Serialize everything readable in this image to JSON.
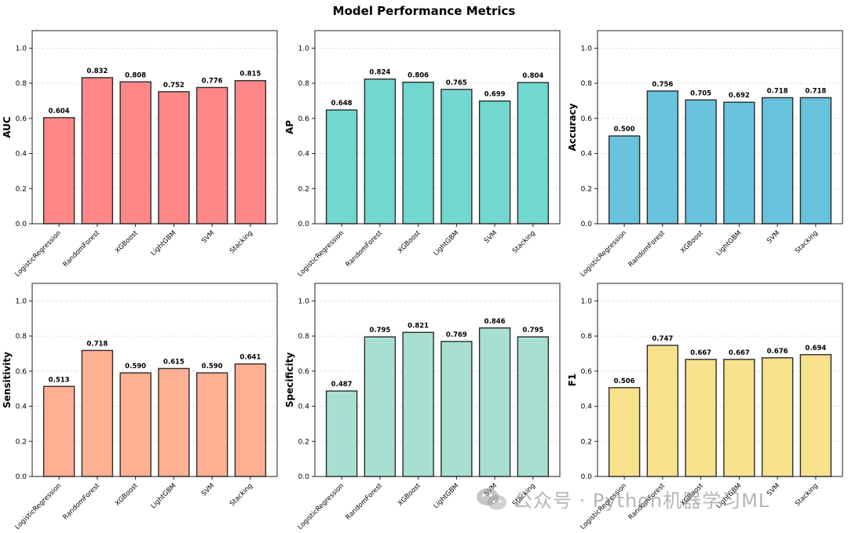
{
  "chart_data": {
    "type": "bar",
    "title": "Model Performance Metrics",
    "categories": [
      "LogisticRegression",
      "RandomForest",
      "XGBoost",
      "LightGBM",
      "SVM",
      "Stacking"
    ],
    "ylim": [
      0,
      1.1
    ],
    "yticks": [
      "0.0",
      "0.2",
      "0.4",
      "0.6",
      "0.8",
      "1.0"
    ],
    "grid": true,
    "panels": [
      {
        "ylabel": "AUC",
        "color": "#ff8787",
        "values": [
          0.604,
          0.832,
          0.808,
          0.752,
          0.776,
          0.815
        ],
        "labels": [
          "0.604",
          "0.832",
          "0.808",
          "0.752",
          "0.776",
          "0.815"
        ]
      },
      {
        "ylabel": "AP",
        "color": "#72d8cf",
        "values": [
          0.648,
          0.824,
          0.806,
          0.765,
          0.699,
          0.804
        ],
        "labels": [
          "0.648",
          "0.824",
          "0.806",
          "0.765",
          "0.699",
          "0.804"
        ]
      },
      {
        "ylabel": "Accuracy",
        "color": "#68c3dc",
        "values": [
          0.5,
          0.756,
          0.705,
          0.692,
          0.718,
          0.718
        ],
        "labels": [
          "0.500",
          "0.756",
          "0.705",
          "0.692",
          "0.718",
          "0.718"
        ]
      },
      {
        "ylabel": "Sensitivity",
        "color": "#ffb093",
        "values": [
          0.513,
          0.718,
          0.59,
          0.615,
          0.59,
          0.641
        ],
        "labels": [
          "0.513",
          "0.718",
          "0.590",
          "0.615",
          "0.590",
          "0.641"
        ]
      },
      {
        "ylabel": "Specificity",
        "color": "#a7e0d2",
        "values": [
          0.487,
          0.795,
          0.821,
          0.769,
          0.846,
          0.795
        ],
        "labels": [
          "0.487",
          "0.795",
          "0.821",
          "0.769",
          "0.846",
          "0.795"
        ]
      },
      {
        "ylabel": "F1",
        "color": "#f7e18c",
        "values": [
          0.506,
          0.747,
          0.667,
          0.667,
          0.676,
          0.694
        ],
        "labels": [
          "0.506",
          "0.747",
          "0.667",
          "0.667",
          "0.676",
          "0.694"
        ]
      }
    ]
  },
  "watermark": {
    "text": "公众号 · Python机器学习ML",
    "icon": "wechat-icon"
  }
}
